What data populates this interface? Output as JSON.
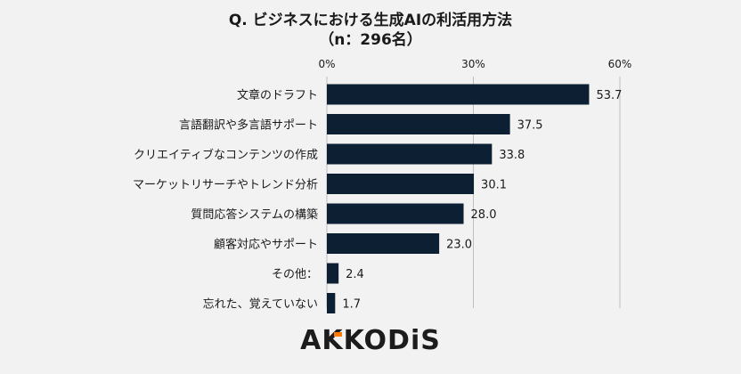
{
  "chart_data": {
    "type": "bar",
    "orientation": "horizontal",
    "title": "Q. ビジネスにおける生成AIの利活用方法",
    "subtitle": "（n：296名）",
    "categories": [
      "文章のドラフト",
      "言語翻訳や多言語サポート",
      "クリエイティブなコンテンツの作成",
      "マーケットリサーチやトレンド分析",
      "質問応答システムの構築",
      "顧客対応やサポート",
      "その他：",
      "忘れた、覚えていない"
    ],
    "values": [
      53.7,
      37.5,
      33.8,
      30.1,
      28.0,
      23.0,
      2.4,
      1.7
    ],
    "value_labels": [
      "53.7",
      "37.5",
      "33.8",
      "30.1",
      "28.0",
      "23.0",
      "2.4",
      "1.7"
    ],
    "xlim": [
      0,
      60
    ],
    "x_ticks": [
      0,
      30,
      60
    ],
    "x_tick_labels": [
      "0%",
      "30%",
      "60%"
    ],
    "x_axis_position": "top",
    "grid": true,
    "bar_color": "#0d1f33"
  },
  "brand": {
    "logo_text": "AKKODiS",
    "accent_color": "#ff7a00"
  }
}
